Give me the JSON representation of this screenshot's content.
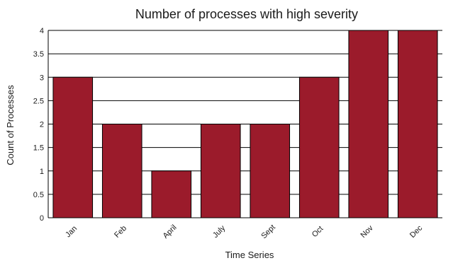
{
  "chart_data": {
    "type": "bar",
    "title": "Number of processes with high severity",
    "xlabel": "Time Series",
    "ylabel": "Count of Processes",
    "categories": [
      "Jan",
      "Feb",
      "April",
      "July",
      "Sept",
      "Oct",
      "Nov",
      "Dec"
    ],
    "values": [
      3,
      2,
      1,
      2,
      2,
      3,
      4,
      4
    ],
    "ylim": [
      0,
      4
    ],
    "yticks": [
      "0",
      "0.5",
      "1",
      "1.5",
      "2",
      "2.5",
      "3",
      "3.5",
      "4"
    ],
    "grid": true,
    "legend": "none",
    "colors": {
      "bar": "#9b1b2b",
      "bar_edge": "#000000",
      "grid": "#000000",
      "axis": "#000000"
    }
  }
}
